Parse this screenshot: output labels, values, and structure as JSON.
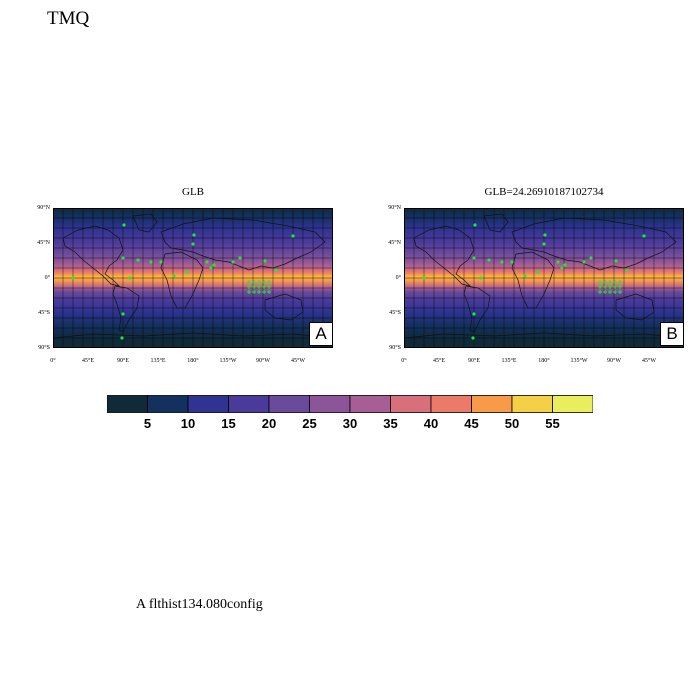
{
  "page_title": "TMQ",
  "maps": [
    {
      "title": "GLB",
      "panel_letter": "A"
    },
    {
      "title": "GLB=24.26910187102734",
      "panel_letter": "B"
    }
  ],
  "lat_labels": [
    "90°N",
    "45°N",
    "0°",
    "45°S",
    "90°S"
  ],
  "lon_labels": [
    "0°",
    "45°E",
    "90°E",
    "135°E",
    "180°",
    "135°W",
    "90°W",
    "45°W"
  ],
  "colorbar": {
    "colors": [
      "#0f2a39",
      "#14305f",
      "#2e348f",
      "#4a3a9a",
      "#6a4a9b",
      "#8c559a",
      "#a75e95",
      "#c0678b",
      "#d8707c",
      "#eb7b68",
      "#f79a4a",
      "#f7b73e",
      "#f5cf45",
      "#e9ef5c"
    ],
    "labels": [
      "5",
      "10",
      "15",
      "20",
      "25",
      "30",
      "35",
      "40",
      "45",
      "50",
      "55"
    ]
  },
  "footer_caption": "A  flthist134.080config"
}
